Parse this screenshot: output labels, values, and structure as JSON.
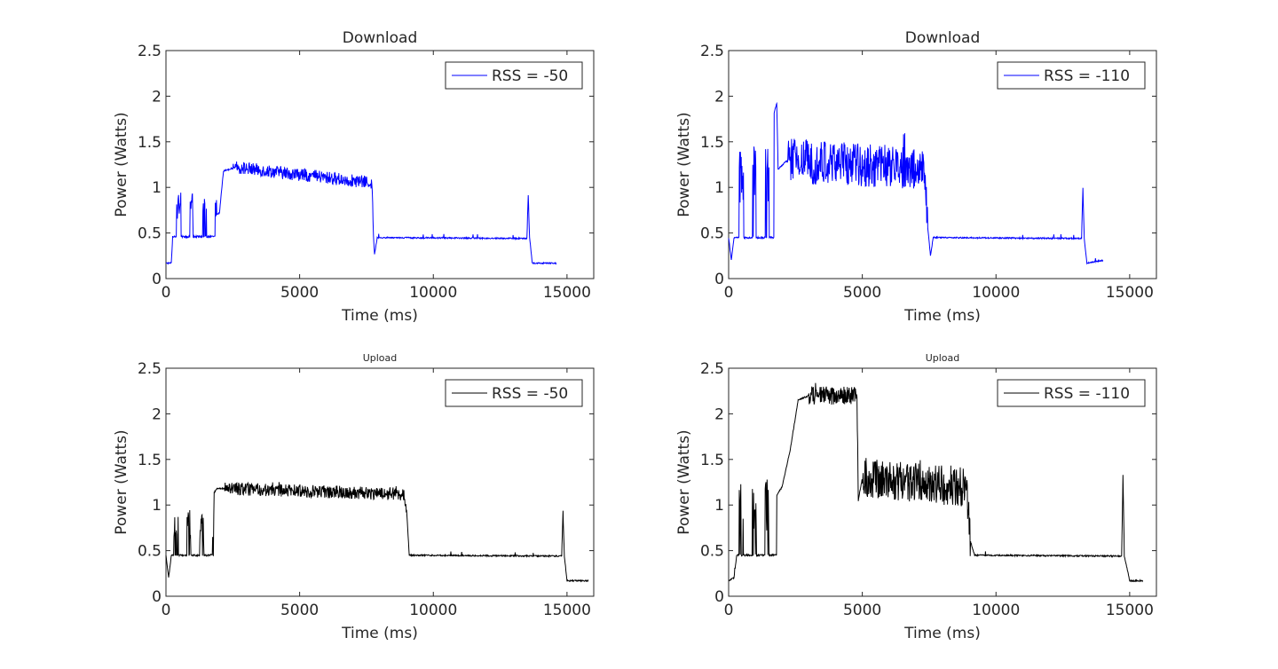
{
  "chart_data": [
    {
      "type": "line",
      "title": "Download",
      "xlabel": "Time (ms)",
      "ylabel": "Power (Watts)",
      "xlim": [
        0,
        16000
      ],
      "ylim": [
        0,
        2.5
      ],
      "xticks": [
        0,
        5000,
        10000,
        15000
      ],
      "yticks": [
        0,
        0.5,
        1,
        1.5,
        2,
        2.5
      ],
      "xtick_labels": [
        "0",
        "5000",
        "10000",
        "15000"
      ],
      "ytick_labels": [
        "0",
        "0.5",
        "1",
        "1.5",
        "2",
        "2.5"
      ],
      "legend_position": "top-right",
      "series": [
        {
          "name": "RSS = -50",
          "color": "#0000ff",
          "duration": 14600,
          "profile": [
            {
              "x": 0,
              "y": 0.17
            },
            {
              "x": 200,
              "y": 0.17
            },
            {
              "x": 250,
              "y": 0.46
            },
            {
              "x": 400,
              "y": 0.46,
              "burst_to": 0.95,
              "until": 1900
            },
            {
              "x": 2000,
              "y": 0.72
            },
            {
              "x": 2150,
              "y": 1.18
            },
            {
              "x": 2600,
              "y": 1.22,
              "noise": 0.07
            },
            {
              "x": 7700,
              "y": 1.05,
              "noise": 0.12
            },
            {
              "x": 7760,
              "y": 0.47
            },
            {
              "x": 7800,
              "y": 0.26
            },
            {
              "x": 7900,
              "y": 0.45
            },
            {
              "x": 13500,
              "y": 0.44
            },
            {
              "x": 13550,
              "y": 0.92
            },
            {
              "x": 13600,
              "y": 0.45
            },
            {
              "x": 13700,
              "y": 0.17
            },
            {
              "x": 14600,
              "y": 0.17
            }
          ]
        }
      ]
    },
    {
      "type": "line",
      "title": "Download",
      "xlabel": "Time (ms)",
      "ylabel": "Power (Watts)",
      "xlim": [
        0,
        16000
      ],
      "ylim": [
        0,
        2.5
      ],
      "xticks": [
        0,
        5000,
        10000,
        15000
      ],
      "yticks": [
        0,
        0.5,
        1,
        1.5,
        2,
        2.5
      ],
      "xtick_labels": [
        "0",
        "5000",
        "10000",
        "15000"
      ],
      "ytick_labels": [
        "0",
        "0.5",
        "1",
        "1.5",
        "2",
        "2.5"
      ],
      "legend_position": "top-right",
      "series": [
        {
          "name": "RSS = -110",
          "color": "#0000ff",
          "duration": 14000,
          "profile": [
            {
              "x": 0,
              "y": 0.45
            },
            {
              "x": 100,
              "y": 0.2
            },
            {
              "x": 200,
              "y": 0.45
            },
            {
              "x": 400,
              "y": 0.45,
              "burst_to": 1.45,
              "until": 1700
            },
            {
              "x": 1800,
              "y": 1.92
            },
            {
              "x": 1850,
              "y": 1.2
            },
            {
              "x": 2200,
              "y": 1.3,
              "noise": 0.25
            },
            {
              "x": 7300,
              "y": 1.2,
              "noise": 0.22
            },
            {
              "x": 7450,
              "y": 0.55
            },
            {
              "x": 7550,
              "y": 0.25
            },
            {
              "x": 7650,
              "y": 0.45
            },
            {
              "x": 13200,
              "y": 0.44
            },
            {
              "x": 13250,
              "y": 1.0
            },
            {
              "x": 13300,
              "y": 0.44
            },
            {
              "x": 13400,
              "y": 0.17
            },
            {
              "x": 14000,
              "y": 0.2
            }
          ]
        }
      ]
    },
    {
      "type": "line",
      "title": "Upload",
      "xlabel": "Time (ms)",
      "ylabel": "Power (Watts)",
      "xlim": [
        0,
        16000
      ],
      "ylim": [
        0,
        2.5
      ],
      "xticks": [
        0,
        5000,
        10000,
        15000
      ],
      "yticks": [
        0,
        0.5,
        1,
        1.5,
        2,
        2.5
      ],
      "xtick_labels": [
        "0",
        "5000",
        "10000",
        "15000"
      ],
      "ytick_labels": [
        "0",
        "0.5",
        "1",
        "1.5",
        "2",
        "2.5"
      ],
      "legend_position": "top-right",
      "series": [
        {
          "name": "RSS = -50",
          "color": "#000000",
          "duration": 15800,
          "profile": [
            {
              "x": 0,
              "y": 0.45
            },
            {
              "x": 100,
              "y": 0.2
            },
            {
              "x": 200,
              "y": 0.45
            },
            {
              "x": 300,
              "y": 0.45,
              "burst_to": 0.95,
              "until": 1800
            },
            {
              "x": 1900,
              "y": 1.18
            },
            {
              "x": 2200,
              "y": 1.18,
              "noise": 0.07
            },
            {
              "x": 8900,
              "y": 1.12,
              "noise": 0.07
            },
            {
              "x": 9000,
              "y": 0.95
            },
            {
              "x": 9100,
              "y": 0.45
            },
            {
              "x": 14800,
              "y": 0.44
            },
            {
              "x": 14850,
              "y": 0.93
            },
            {
              "x": 14900,
              "y": 0.44
            },
            {
              "x": 15000,
              "y": 0.17
            },
            {
              "x": 15800,
              "y": 0.17
            }
          ]
        }
      ]
    },
    {
      "type": "line",
      "title": "Upload",
      "xlabel": "Time (ms)",
      "ylabel": "Power (Watts)",
      "xlim": [
        0,
        16000
      ],
      "ylim": [
        0,
        2.5
      ],
      "xticks": [
        0,
        5000,
        10000,
        15000
      ],
      "yticks": [
        0,
        0.5,
        1,
        1.5,
        2,
        2.5
      ],
      "xtick_labels": [
        "0",
        "5000",
        "10000",
        "15000"
      ],
      "ytick_labels": [
        "0",
        "0.5",
        "1",
        "1.5",
        "2",
        "2.5"
      ],
      "legend_position": "top-right",
      "series": [
        {
          "name": "RSS = -110",
          "color": "#000000",
          "duration": 15500,
          "profile": [
            {
              "x": 0,
              "y": 0.17
            },
            {
              "x": 200,
              "y": 0.2
            },
            {
              "x": 300,
              "y": 0.45
            },
            {
              "x": 400,
              "y": 0.45,
              "burst_to": 1.3,
              "until": 1800
            },
            {
              "x": 2000,
              "y": 1.2
            },
            {
              "x": 2300,
              "y": 1.6
            },
            {
              "x": 2600,
              "y": 2.15
            },
            {
              "x": 3000,
              "y": 2.2,
              "noise": 0.1
            },
            {
              "x": 4800,
              "y": 2.2,
              "noise": 0.1
            },
            {
              "x": 4850,
              "y": 1.05
            },
            {
              "x": 5000,
              "y": 1.3,
              "noise": 0.22
            },
            {
              "x": 8900,
              "y": 1.2,
              "noise": 0.22
            },
            {
              "x": 9050,
              "y": 0.6
            },
            {
              "x": 9200,
              "y": 0.45
            },
            {
              "x": 14700,
              "y": 0.44
            },
            {
              "x": 14750,
              "y": 1.33
            },
            {
              "x": 14800,
              "y": 0.44
            },
            {
              "x": 15000,
              "y": 0.17
            },
            {
              "x": 15500,
              "y": 0.17
            }
          ]
        }
      ]
    }
  ]
}
